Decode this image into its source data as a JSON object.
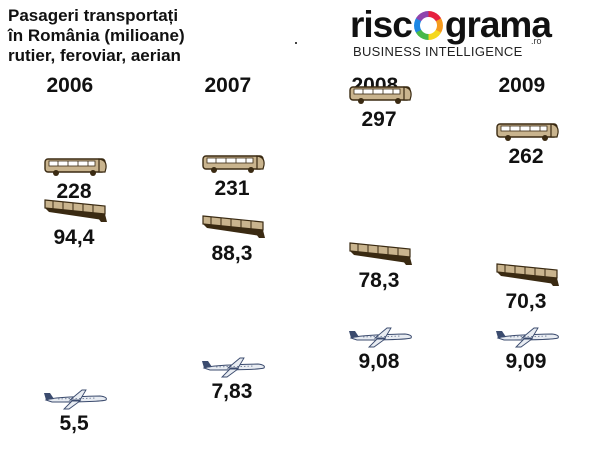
{
  "chart_data": {
    "type": "scatter",
    "title_lines": [
      "Pasageri transportați",
      "în România (milioane)",
      "rutier, feroviar, aerian"
    ],
    "categories": [
      "2006",
      "2007",
      "2008",
      "2009"
    ],
    "series": [
      {
        "icon": "bus-icon",
        "values": [
          228,
          231,
          297,
          262
        ],
        "labels": [
          "228",
          "231",
          "297",
          "262"
        ]
      },
      {
        "icon": "train-icon",
        "values": [
          94.4,
          88.3,
          78.3,
          70.3
        ],
        "labels": [
          "94,4",
          "88,3",
          "78,3",
          "70,3"
        ]
      },
      {
        "icon": "plane-icon",
        "values": [
          5.5,
          7.83,
          9.08,
          9.09
        ],
        "labels": [
          "5,5",
          "7,83",
          "9,08",
          "9,09"
        ]
      }
    ]
  },
  "logo": {
    "word_left": "risc",
    "word_right": "grama",
    "suffix": ".ro",
    "tagline": "BUSINESS INTELLIGENCE"
  },
  "colors": {
    "vehicle_fill": "#c9b48e",
    "vehicle_dark": "#3a2a12",
    "plane_fill": "#e8ecf2",
    "plane_dark": "#3b4b6e"
  }
}
